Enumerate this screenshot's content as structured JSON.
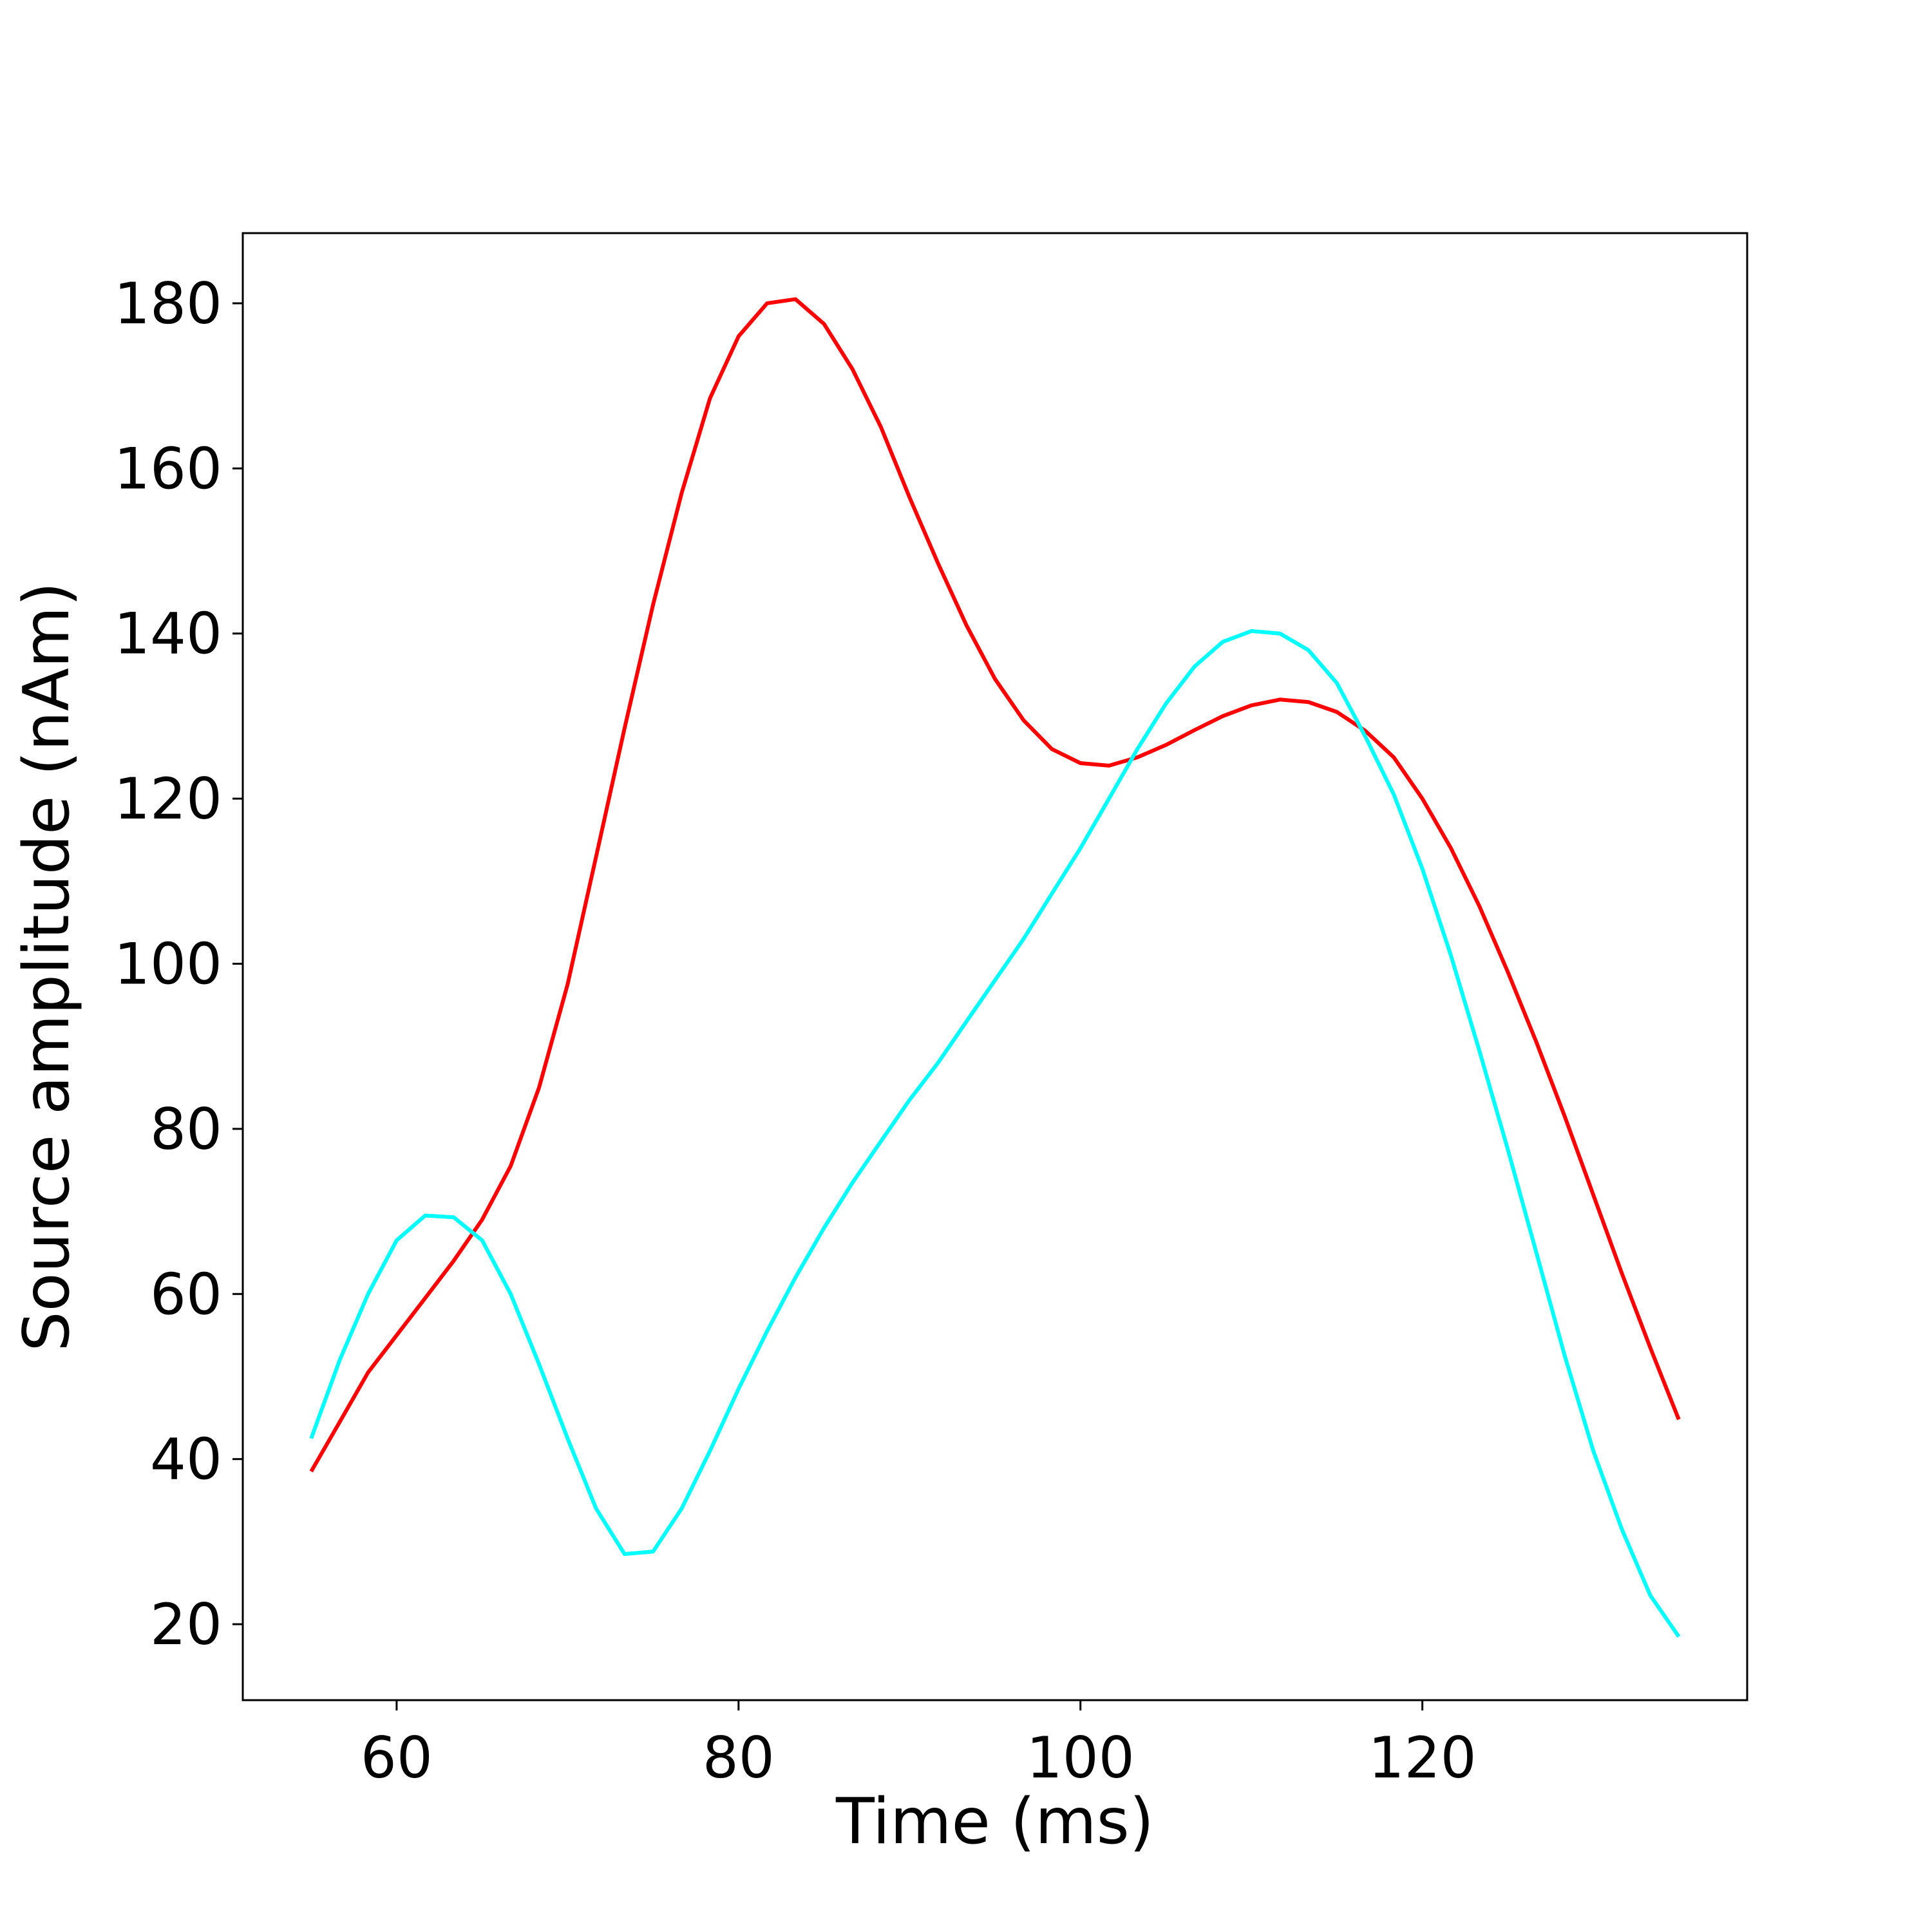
{
  "chart_data": {
    "type": "line",
    "xlabel": "Time (ms)",
    "ylabel": "Source amplitude (nAm)",
    "xlim": [
      51,
      139
    ],
    "ylim": [
      10.8,
      188.5
    ],
    "xticks": [
      60,
      80,
      100,
      120
    ],
    "yticks": [
      20,
      40,
      60,
      80,
      100,
      120,
      140,
      160,
      180
    ],
    "grid": false,
    "legend": "none",
    "x": [
      55,
      56.67,
      58.33,
      60,
      61.67,
      63.33,
      65,
      66.67,
      68.33,
      70,
      71.67,
      73.33,
      75,
      76.67,
      78.33,
      80,
      81.67,
      83.33,
      85,
      86.67,
      88.33,
      90,
      91.67,
      93.33,
      95,
      96.67,
      98.33,
      100,
      101.67,
      103.33,
      105,
      106.67,
      108.33,
      110,
      111.67,
      113.33,
      115,
      116.67,
      118.33,
      120,
      121.67,
      123.33,
      125,
      126.67,
      128.33,
      130,
      131.67,
      133.33,
      135
    ],
    "series": [
      {
        "color": "#ff0000",
        "values": [
          38.5,
          44.5,
          50.5,
          55,
          59.5,
          64,
          69,
          75.5,
          85,
          97.5,
          113,
          128.5,
          143.5,
          157,
          168.5,
          176,
          180,
          180.5,
          177.5,
          172,
          165,
          156.5,
          148.5,
          141,
          134.5,
          129.5,
          126,
          124.3,
          124,
          125,
          126.5,
          128.3,
          130,
          131.3,
          132,
          131.7,
          130.5,
          128.2,
          125,
          120,
          114,
          107,
          99,
          90.5,
          81.5,
          72,
          62.5,
          53.5,
          44.8
        ]
      },
      {
        "color": "#00ffff",
        "values": [
          42.5,
          52,
          60,
          66.5,
          69.5,
          69.3,
          66.5,
          60,
          51.5,
          42.5,
          34,
          28.5,
          28.8,
          34,
          41,
          48.5,
          55.5,
          62,
          68,
          73.5,
          78.5,
          83.5,
          88,
          93,
          98,
          103,
          108.5,
          114,
          120,
          126,
          131.5,
          136,
          139,
          140.3,
          140,
          138,
          134,
          127.5,
          120.5,
          111.5,
          101,
          89.5,
          77.5,
          65,
          52.5,
          41,
          31.5,
          23.5,
          18.5
        ]
      }
    ]
  }
}
